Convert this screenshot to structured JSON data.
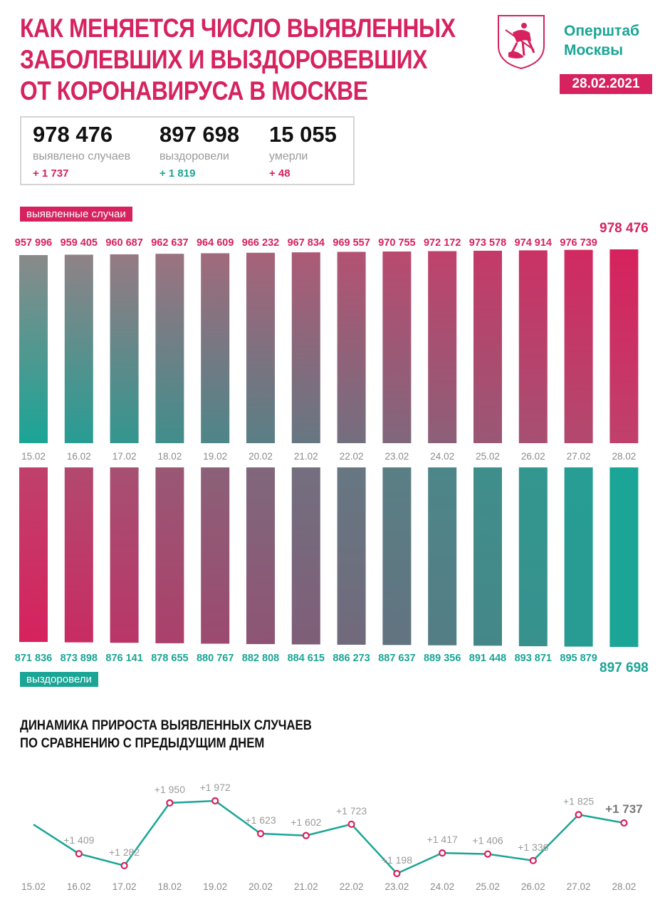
{
  "header": {
    "title_lines": [
      "КАК МЕНЯЕТСЯ ЧИСЛО ВЫЯВЛЕННЫХ",
      "ЗАБОЛЕВШИХ И ВЫЗДОРОВЕВШИХ",
      "ОТ КОРОНАВИРУСА В МОСКВЕ"
    ],
    "brand_lines": [
      "Оперштаб",
      "Москвы"
    ],
    "date": "28.02.2021"
  },
  "summary": {
    "cases": {
      "value": "978 476",
      "label": "выявлено случаев",
      "delta": "+ 1 737"
    },
    "recovered": {
      "value": "897 698",
      "label": "выздоровели",
      "delta": "+ 1 819"
    },
    "deaths": {
      "value": "15 055",
      "label": "умерли",
      "delta": "+ 48"
    }
  },
  "colors": {
    "pink": "#d6225e",
    "teal": "#1aa596",
    "gray": "#8a8a8a"
  },
  "chart_data": [
    {
      "type": "bar",
      "series_label": "выявленные случаи",
      "categories": [
        "15.02",
        "16.02",
        "17.02",
        "18.02",
        "19.02",
        "20.02",
        "21.02",
        "22.02",
        "23.02",
        "24.02",
        "25.02",
        "26.02",
        "27.02",
        "28.02"
      ],
      "values": [
        957996,
        959405,
        960687,
        962637,
        964609,
        966232,
        967834,
        969557,
        970755,
        972172,
        973578,
        974914,
        976739,
        978476
      ],
      "value_labels": [
        "957 996",
        "959 405",
        "960 687",
        "962 637",
        "964 609",
        "966 232",
        "967 834",
        "969 557",
        "970 755",
        "972 172",
        "973 578",
        "974 914",
        "976 739",
        "978 476"
      ]
    },
    {
      "type": "bar",
      "series_label": "выздоровели",
      "categories": [
        "15.02",
        "16.02",
        "17.02",
        "18.02",
        "19.02",
        "20.02",
        "21.02",
        "22.02",
        "23.02",
        "24.02",
        "25.02",
        "26.02",
        "27.02",
        "28.02"
      ],
      "values": [
        871836,
        873898,
        876141,
        878655,
        880767,
        882808,
        884615,
        886273,
        887637,
        889356,
        891448,
        893871,
        895879,
        897698
      ],
      "value_labels": [
        "871 836",
        "873 898",
        "876 141",
        "878 655",
        "880 767",
        "882 808",
        "884 615",
        "886 273",
        "887 637",
        "889 356",
        "891 448",
        "893 871",
        "895 879",
        "897 698"
      ]
    },
    {
      "type": "line",
      "title_lines": [
        "ДИНАМИКА ПРИРОСТА ВЫЯВЛЕННЫХ СЛУЧАЕВ",
        "ПО СРАВНЕНИЮ С ПРЕДЫДУЩИМ ДНЕМ"
      ],
      "categories": [
        "15.02",
        "16.02",
        "17.02",
        "18.02",
        "19.02",
        "20.02",
        "21.02",
        "22.02",
        "23.02",
        "24.02",
        "25.02",
        "26.02",
        "27.02",
        "28.02"
      ],
      "values": [
        null,
        1409,
        1282,
        1950,
        1972,
        1623,
        1602,
        1723,
        1198,
        1417,
        1406,
        1336,
        1825,
        1737
      ],
      "value_labels": [
        "",
        "+1 409",
        "+1 282",
        "+1 950",
        "+1 972",
        "+1 623",
        "+1 602",
        "+1 723",
        "+1 198",
        "+1 417",
        "+1 406",
        "+1 336",
        "+1 825",
        "+1 737"
      ],
      "first_segment_start_value": 1720
    }
  ]
}
